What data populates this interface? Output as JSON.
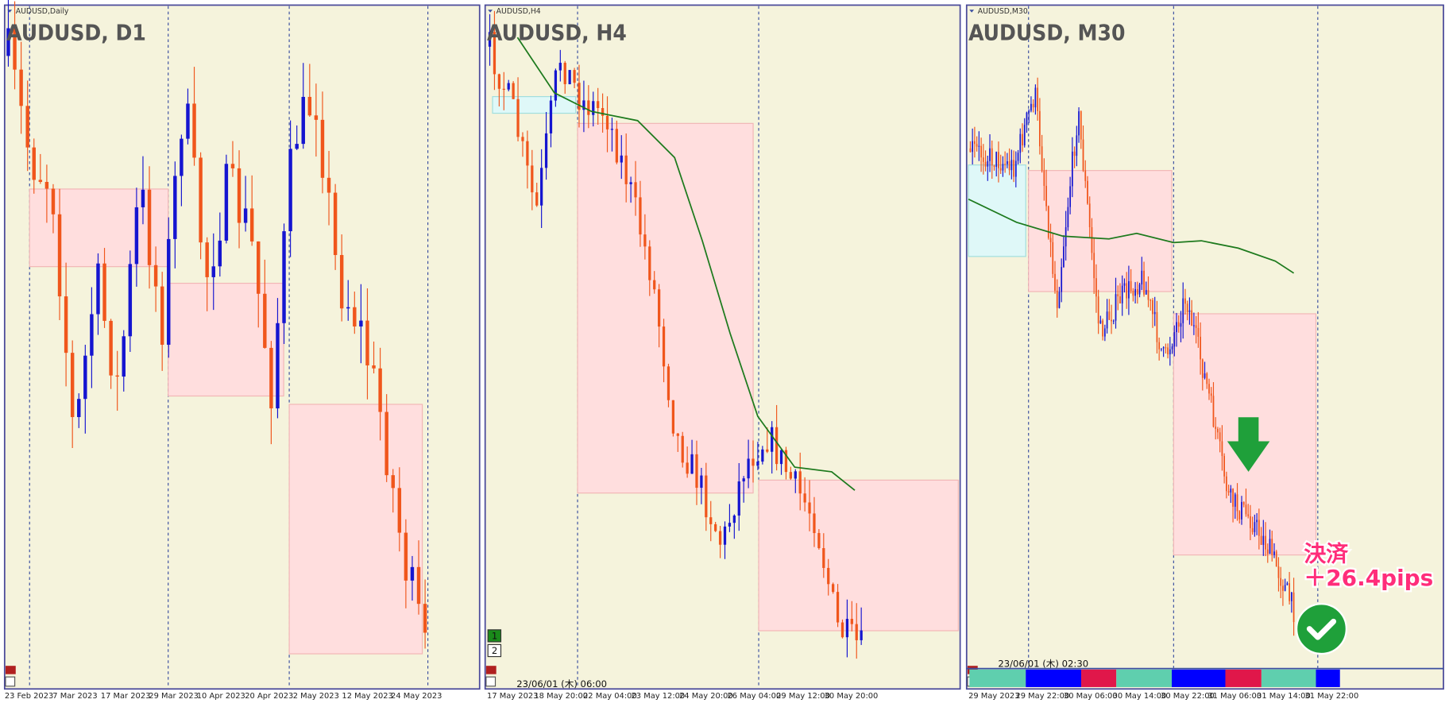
{
  "panels": [
    {
      "symbol_label": "AUDUSD,Daily",
      "title": "AUDUSD, D1",
      "x_labels": [
        "23 Feb 2023",
        "7 Mar 2023",
        "17 Mar 2023",
        "29 Mar 2023",
        "10 Apr 2023",
        "20 Apr 2023",
        "2 May 2023",
        "12 May 2023",
        "24 May 2023"
      ]
    },
    {
      "symbol_label": "AUDUSD,H4",
      "title": "AUDUSD, H4",
      "x_labels": [
        "17 May 2023",
        "18 May 20:00",
        "22 May 04:00",
        "23 May 12:00",
        "24 May 20:00",
        "26 May 04:00",
        "29 May 12:00",
        "30 May 20:00"
      ],
      "timestamp": "23/06/01 (木) 06:00",
      "badges": [
        "1",
        "2"
      ]
    },
    {
      "symbol_label": "AUDUSD,M30",
      "title": "AUDUSD, M30",
      "x_labels": [
        "29 May 2023",
        "29 May 22:00",
        "30 May 06:00",
        "30 May 14:00",
        "30 May 22:00",
        "31 May 06:00",
        "31 May 14:00",
        "31 May 22:00"
      ],
      "timestamp": "23/06/01 (木) 02:30",
      "annotation": [
        "決済",
        "＋26.4pips"
      ]
    }
  ]
}
